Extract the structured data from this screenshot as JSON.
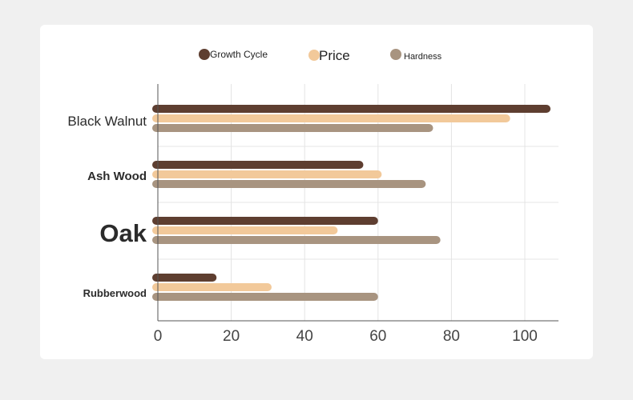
{
  "chart_data": {
    "type": "bar",
    "orientation": "horizontal",
    "categories": [
      "Black Walnut",
      "Ash Wood",
      "Oak",
      "Rubberwood"
    ],
    "series": [
      {
        "name": "Growth Cycle",
        "color": "#5e3e30",
        "values": [
          107,
          56,
          60,
          16
        ]
      },
      {
        "name": "Price",
        "color": "#f2c99a",
        "values": [
          96,
          61,
          49,
          31
        ]
      },
      {
        "name": "Hardness",
        "color": "#a89480",
        "values": [
          75,
          73,
          77,
          60
        ]
      }
    ],
    "xticks": [
      "0",
      "20",
      "40",
      "60",
      "80",
      "100"
    ],
    "xlim": [
      0,
      110
    ],
    "grid": true,
    "legend_position": "top-center"
  }
}
